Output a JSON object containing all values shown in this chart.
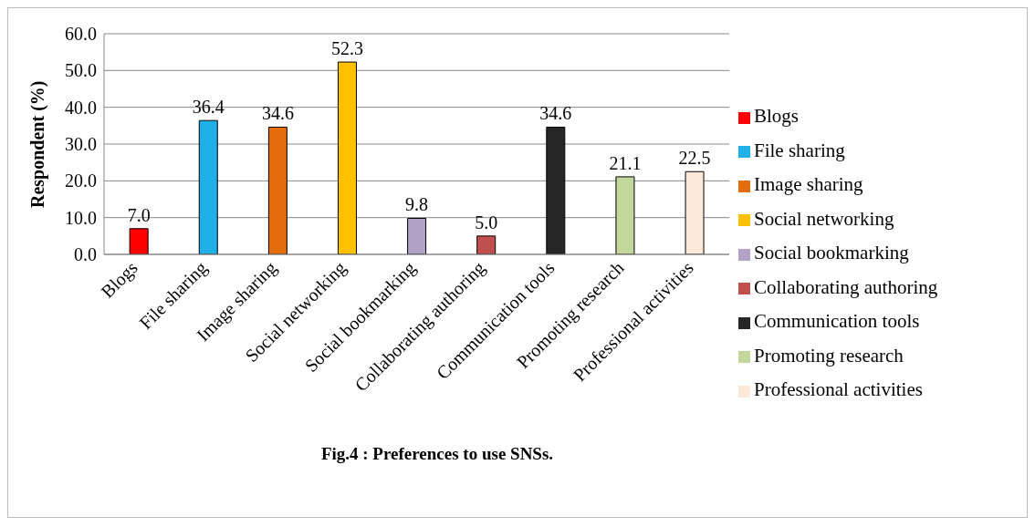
{
  "chart_data": {
    "type": "bar",
    "title": "Fig.4 : Preferences to use SNSs.",
    "ylabel": "Respondent (%)",
    "categories": [
      "Blogs",
      "File sharing",
      "Image sharing",
      "Social networking",
      "Social bookmarking",
      "Collaborating authoring",
      "Communication tools",
      "Promoting research",
      "Professional activities"
    ],
    "series": [
      {
        "name": "Blogs",
        "color": "#ff0000",
        "values": [
          7.0,
          null,
          null,
          null,
          null,
          null,
          null,
          null,
          null
        ],
        "value_labels": [
          "7.0",
          null,
          null,
          null,
          null,
          null,
          null,
          null,
          null
        ]
      },
      {
        "name": "File sharing",
        "color": "#1fb0e8",
        "values": [
          null,
          36.4,
          null,
          null,
          null,
          null,
          null,
          null,
          null
        ],
        "value_labels": [
          null,
          "36.4",
          null,
          null,
          null,
          null,
          null,
          null,
          null
        ]
      },
      {
        "name": "Image sharing",
        "color": "#e46c0a",
        "values": [
          null,
          null,
          34.6,
          null,
          null,
          null,
          null,
          null,
          null
        ],
        "value_labels": [
          null,
          null,
          "34.6",
          null,
          null,
          null,
          null,
          null,
          null
        ]
      },
      {
        "name": "Social networking",
        "color": "#ffc000",
        "values": [
          null,
          null,
          null,
          52.3,
          null,
          null,
          null,
          null,
          null
        ],
        "value_labels": [
          null,
          null,
          null,
          "52.3",
          null,
          null,
          null,
          null,
          null
        ]
      },
      {
        "name": "Social bookmarking",
        "color": "#b3a2c7",
        "values": [
          null,
          null,
          null,
          null,
          9.8,
          null,
          null,
          null,
          null
        ],
        "value_labels": [
          null,
          null,
          null,
          null,
          "9.8",
          null,
          null,
          null,
          null
        ]
      },
      {
        "name": "Collaborating authoring",
        "color": "#c0504d",
        "values": [
          null,
          null,
          null,
          null,
          null,
          5.0,
          null,
          null,
          null
        ],
        "value_labels": [
          null,
          null,
          null,
          null,
          null,
          "5.0",
          null,
          null,
          null
        ]
      },
      {
        "name": "Communication tools",
        "color": "#262626",
        "values": [
          null,
          null,
          null,
          null,
          null,
          null,
          34.6,
          null,
          null
        ],
        "value_labels": [
          null,
          null,
          null,
          null,
          null,
          null,
          "34.6",
          null,
          null
        ]
      },
      {
        "name": "Promoting research",
        "color": "#c3d69b",
        "values": [
          null,
          null,
          null,
          null,
          null,
          null,
          null,
          21.1,
          null
        ],
        "value_labels": [
          null,
          null,
          null,
          null,
          null,
          null,
          null,
          "21.1",
          null
        ]
      },
      {
        "name": "Professional activities",
        "color": "#fde9d9",
        "values": [
          null,
          null,
          null,
          null,
          null,
          null,
          null,
          null,
          22.5
        ],
        "value_labels": [
          null,
          null,
          null,
          null,
          null,
          null,
          null,
          null,
          "22.5"
        ]
      }
    ],
    "stacked": true,
    "ylim": [
      0,
      60
    ],
    "yticks": [
      {
        "value": 0,
        "label": "0.0"
      },
      {
        "value": 10,
        "label": "10.0"
      },
      {
        "value": 20,
        "label": "20.0"
      },
      {
        "value": 30,
        "label": "30.0"
      },
      {
        "value": 40,
        "label": "40.0"
      },
      {
        "value": 50,
        "label": "50.0"
      },
      {
        "value": 60,
        "label": "60.0"
      }
    ],
    "grid": "y",
    "legend": "right"
  }
}
